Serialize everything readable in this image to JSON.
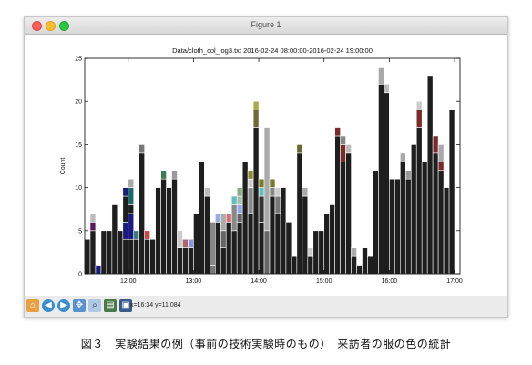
{
  "window": {
    "title": "Figure 1"
  },
  "chart_data": {
    "type": "bar",
    "title": "Data/cloth_col_log3.txt 2016-02-24 08:00:00-2016-02-24 19:00:00",
    "xlabel": "",
    "ylabel": "Count",
    "ylim": [
      0,
      25
    ],
    "yticks": [
      0,
      5,
      10,
      15,
      20,
      25
    ],
    "xlim": [
      "11:20",
      "17:05"
    ],
    "xticks": [
      "12:00",
      "13:00",
      "14:00",
      "15:00",
      "16:00",
      "17:00"
    ],
    "grid": false,
    "start_time": "11:20",
    "interval_minutes": 5,
    "bars": [
      {
        "values": [
          4
        ]
      },
      {
        "values": [
          5,
          1,
          1
        ],
        "colors": [
          "#1e1e1e",
          "#5a1a5a",
          "#bbbbbb"
        ]
      },
      {
        "values": [
          1
        ],
        "colors": [
          "#1a1a80"
        ]
      },
      {
        "values": [
          5
        ]
      },
      {
        "values": [
          5
        ]
      },
      {
        "values": [
          8
        ]
      },
      {
        "values": [
          5
        ]
      },
      {
        "values": [
          4,
          2,
          3,
          1
        ],
        "colors": [
          "#1e1e1e",
          "#1a1a80",
          "#1e1e1e",
          "#1a1a80"
        ]
      },
      {
        "values": [
          4,
          3,
          1,
          2,
          1
        ],
        "colors": [
          "#1e1e1e",
          "#1a1a80",
          "#1e1e1e",
          "#1e6a6a",
          "#aaaaaa"
        ]
      },
      {
        "values": [
          4,
          1
        ],
        "colors": [
          "#1e1e1e",
          "#3a7a7a"
        ]
      },
      {
        "values": [
          14,
          1
        ],
        "colors": [
          "#1e1e1e",
          "#777777"
        ]
      },
      {
        "values": [
          4,
          1
        ],
        "colors": [
          "#1e1e1e",
          "#cc4444"
        ]
      },
      {
        "values": [
          4
        ]
      },
      {
        "values": [
          10
        ]
      },
      {
        "values": [
          11,
          1
        ],
        "colors": [
          "#1e1e1e",
          "#3a7a5a"
        ]
      },
      {
        "values": [
          10
        ]
      },
      {
        "values": [
          11,
          1
        ],
        "colors": [
          "#1e1e1e",
          "#999999"
        ]
      },
      {
        "values": [
          3,
          2
        ],
        "colors": [
          "#1e1e1e",
          "#cccccc"
        ]
      },
      {
        "values": [
          3,
          1
        ],
        "colors": [
          "#1e1e1e",
          "#aa6666"
        ]
      },
      {
        "values": [
          3,
          1
        ],
        "colors": [
          "#1e1e1e",
          "#9090e0"
        ]
      },
      {
        "values": [
          7
        ]
      },
      {
        "values": [
          13
        ]
      },
      {
        "values": [
          9,
          1
        ],
        "colors": [
          "#1e1e1e",
          "#bbbbbb"
        ]
      },
      {
        "values": [
          1,
          5
        ],
        "colors": [
          "#777777",
          "#888888"
        ]
      },
      {
        "values": [
          6,
          1
        ],
        "colors": [
          "#1e1e1e",
          "#9aaae8"
        ]
      },
      {
        "values": [
          3,
          2,
          2
        ],
        "colors": [
          "#1e1e1e",
          "#666666",
          "#aaaaaa"
        ]
      },
      {
        "values": [
          6,
          1
        ],
        "colors": [
          "#1e1e1e",
          "#d87070"
        ]
      },
      {
        "values": [
          5,
          3,
          1
        ],
        "colors": [
          "#1e1e1e",
          "#888888",
          "#60c0c0"
        ]
      },
      {
        "values": [
          6,
          1,
          1,
          1,
          1
        ],
        "colors": [
          "#1e1e1e",
          "#666666",
          "#9aaae8",
          "#a8c0a8",
          "#8aaa8a"
        ]
      },
      {
        "values": [
          13
        ]
      },
      {
        "values": [
          7,
          3,
          1,
          1
        ],
        "colors": [
          "#1e1e1e",
          "#888888",
          "#cccccc",
          "#8a8a2a"
        ]
      },
      {
        "values": [
          17,
          2,
          1
        ],
        "colors": [
          "#1e1e1e",
          "#6a6a3a",
          "#aaaa4a"
        ]
      },
      {
        "values": [
          6,
          3,
          1,
          1
        ],
        "colors": [
          "#1e1e1e",
          "#333333",
          "#60c0c0",
          "#7a7a2a"
        ]
      },
      {
        "values": [
          5,
          12
        ],
        "colors": [
          "#666666",
          "#aaaaaa"
        ]
      },
      {
        "values": [
          9,
          1,
          1
        ],
        "colors": [
          "#1e1e1e",
          "#888888",
          "#777733"
        ]
      },
      {
        "values": [
          7,
          2,
          1
        ],
        "colors": [
          "#1e1e1e",
          "#777777",
          "#cccccc"
        ]
      },
      {
        "values": [
          10
        ]
      },
      {
        "values": [
          6
        ]
      },
      {
        "values": [
          2
        ]
      },
      {
        "values": [
          14,
          1
        ],
        "colors": [
          "#1e1e1e",
          "#6a6a2a"
        ]
      },
      {
        "values": [
          9,
          1
        ],
        "colors": [
          "#1e1e1e",
          "#aaaaaa"
        ]
      },
      {
        "values": [
          2,
          1
        ],
        "colors": [
          "#1e1e1e",
          "#cccccc"
        ]
      },
      {
        "values": [
          5
        ]
      },
      {
        "values": [
          5
        ]
      },
      {
        "values": [
          7
        ]
      },
      {
        "values": [
          8
        ]
      },
      {
        "values": [
          16,
          1
        ],
        "colors": [
          "#1e1e1e",
          "#7a2a2a"
        ]
      },
      {
        "values": [
          13,
          2,
          1
        ],
        "colors": [
          "#1e1e1e",
          "#7a2a2a",
          "#888888"
        ]
      },
      {
        "values": [
          14,
          1
        ],
        "colors": [
          "#1e1e1e",
          "#bbbbbb"
        ]
      },
      {
        "values": [
          2,
          1
        ],
        "colors": [
          "#1e1e1e",
          "#aaaaaa"
        ]
      },
      {
        "values": [
          1
        ]
      },
      {
        "values": [
          3
        ]
      },
      {
        "values": [
          2
        ]
      },
      {
        "values": [
          12
        ]
      },
      {
        "values": [
          22,
          2
        ],
        "colors": [
          "#1e1e1e",
          "#aaaaaa"
        ]
      },
      {
        "values": [
          21,
          1
        ],
        "colors": [
          "#1e1e1e",
          "#bbbbbb"
        ]
      },
      {
        "values": [
          11
        ]
      },
      {
        "values": [
          11
        ]
      },
      {
        "values": [
          13,
          1
        ],
        "colors": [
          "#1e1e1e",
          "#aaaaaa"
        ]
      },
      {
        "values": [
          11,
          1
        ],
        "colors": [
          "#1e1e1e",
          "#999999"
        ]
      },
      {
        "values": [
          15
        ]
      },
      {
        "values": [
          17,
          2,
          1
        ],
        "colors": [
          "#1e1e1e",
          "#7a2a2a",
          "#cccccc"
        ]
      },
      {
        "values": [
          13
        ]
      },
      {
        "values": [
          23
        ]
      },
      {
        "values": [
          14,
          2
        ],
        "colors": [
          "#1e1e1e",
          "#7a2a2a"
        ]
      },
      {
        "values": [
          12,
          1,
          2
        ],
        "colors": [
          "#1e1e1e",
          "#7a2a2a",
          "#aaaaaa"
        ]
      },
      {
        "values": [
          10
        ]
      },
      {
        "values": [
          19
        ]
      }
    ]
  },
  "toolbar": {
    "coords": "x=16:34  y=11.084",
    "buttons": [
      "home-icon",
      "back-icon",
      "forward-icon",
      "pan-icon",
      "zoom-icon",
      "configure-icon",
      "save-icon"
    ]
  },
  "caption": "図３　実験結果の例（事前の技術実験時のもの）　来訪者の服の色の統計",
  "colors": {
    "bar_default": "#1e1e1e",
    "bar_edge": "#ffffff"
  }
}
